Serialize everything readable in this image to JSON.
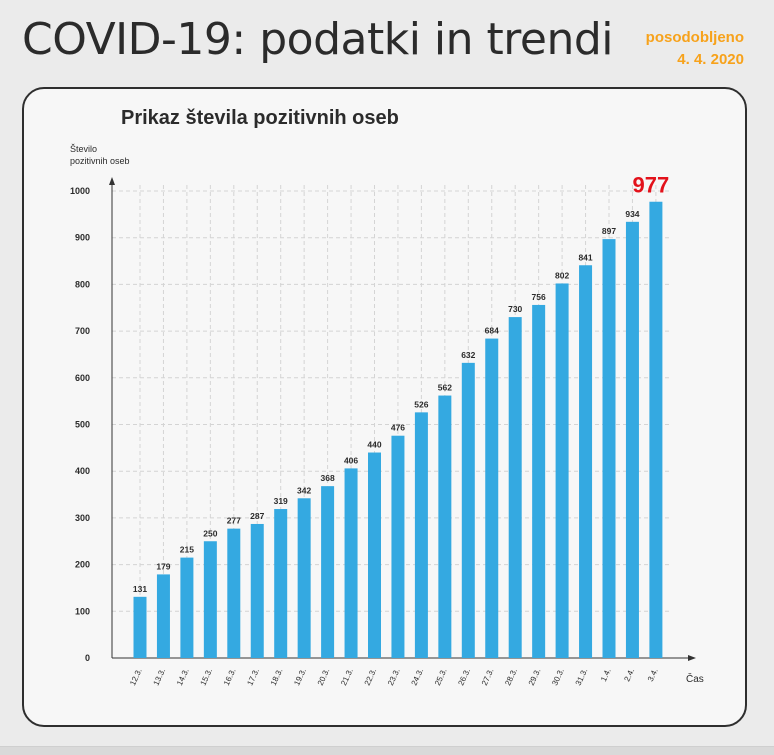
{
  "header": {
    "title": "COVID-19: podatki in trendi",
    "updated_label": "posodobljeno",
    "updated_date": "4. 4. 2020"
  },
  "chart_data": {
    "type": "bar",
    "title": "Prikaz števila pozitivnih oseb",
    "ylabel_line1": "Število",
    "ylabel_line2": "pozitivnih oseb",
    "xlabel": "Čas",
    "ylim": [
      0,
      1000
    ],
    "yticks": [
      0,
      100,
      200,
      300,
      400,
      500,
      600,
      700,
      800,
      900,
      1000
    ],
    "grid": true,
    "categories": [
      "12.3.",
      "13.3.",
      "14.3.",
      "15.3.",
      "16.3.",
      "17.3.",
      "18.3.",
      "19.3.",
      "20.3.",
      "21.3.",
      "22.3.",
      "23.3.",
      "24.3.",
      "25.3.",
      "26.3.",
      "27.3.",
      "28.3.",
      "29.3.",
      "30.3.",
      "31.3.",
      "1.4.",
      "2.4.",
      "3.4."
    ],
    "values": [
      131,
      179,
      215,
      250,
      277,
      287,
      319,
      342,
      368,
      406,
      440,
      476,
      526,
      562,
      632,
      684,
      730,
      756,
      802,
      841,
      897,
      934,
      977
    ],
    "highlight_value": "977",
    "colors": {
      "bar": "#34a9e1",
      "highlight": "#e3121b",
      "accent": "#f7a21b"
    }
  }
}
